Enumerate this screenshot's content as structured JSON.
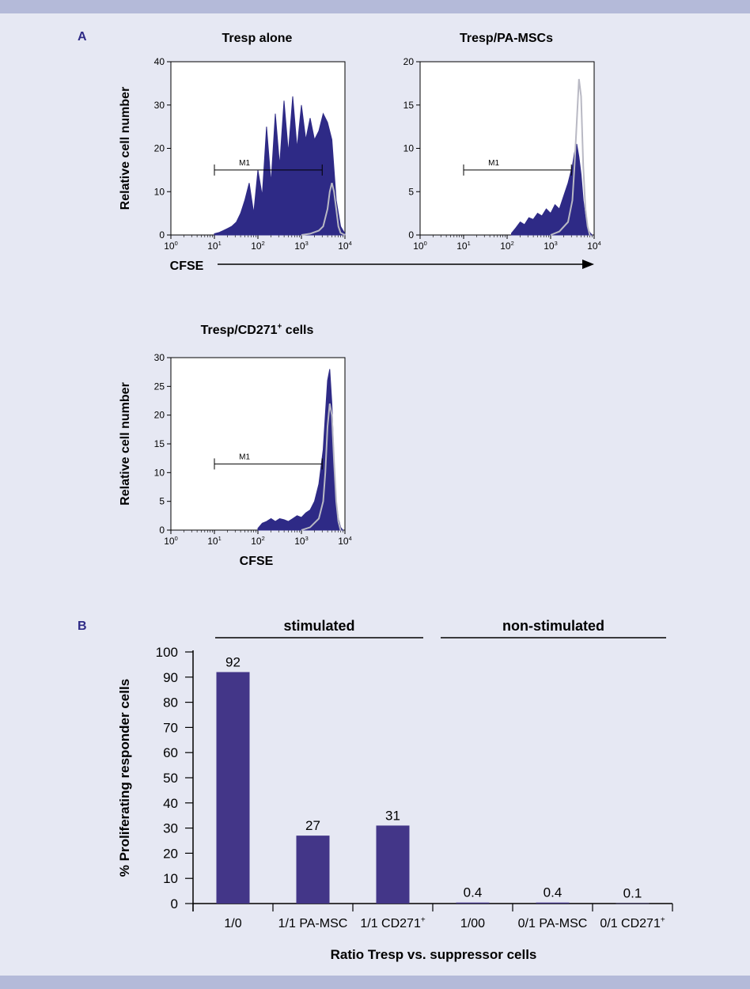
{
  "colors": {
    "page_background": "#e6e8f3",
    "band": "#b4bad9",
    "bar_fill": "#433688",
    "histogram_fill": "#2e2a86",
    "control_outline": "#b9b9c4",
    "panel_letter": "#2e2a86",
    "plot_background": "#ffffff"
  },
  "panel_a": {
    "letter": "A"
  },
  "panel_b": {
    "letter": "B"
  },
  "chart_data": [
    {
      "type": "area",
      "title": "Tresp alone",
      "xlabel": "CFSE",
      "ylabel": "Relative cell number",
      "x_scale": "log",
      "xlim": [
        1,
        10000
      ],
      "ylim": [
        0,
        40
      ],
      "x_ticks": [
        "10",
        "10",
        "10",
        "10",
        "10"
      ],
      "x_tick_exponents": [
        "0",
        "1",
        "2",
        "3",
        "4"
      ],
      "y_ticks": [
        "0",
        "10",
        "20",
        "30",
        "40"
      ],
      "gate": {
        "label": "M1",
        "x_start": 10,
        "x_end": 3000,
        "y": 15
      },
      "series": [
        {
          "role": "filled",
          "x": [
            10,
            13,
            16,
            20,
            25,
            32,
            40,
            50,
            63,
            80,
            100,
            126,
            158,
            200,
            251,
            316,
            398,
            501,
            631,
            794,
            1000,
            1259,
            1585,
            1995,
            2512,
            3162,
            3981,
            5012,
            6310,
            7943,
            10000
          ],
          "y": [
            0.3,
            0.6,
            1,
            1.5,
            2,
            3,
            5,
            8,
            12,
            5,
            15,
            9,
            25,
            12,
            28,
            16,
            31,
            19,
            32,
            20,
            30,
            22,
            27,
            22,
            24,
            28,
            26,
            22,
            8,
            2,
            0.3
          ]
        },
        {
          "role": "outline",
          "x": [
            1000,
            1585,
            2512,
            3162,
            3981,
            4467,
            5012,
            5623,
            6310,
            7079,
            7943,
            10000
          ],
          "y": [
            0,
            0.3,
            1,
            2,
            6,
            10,
            12,
            10,
            6,
            2,
            0.5,
            0
          ]
        }
      ]
    },
    {
      "type": "area",
      "title": "Tresp/PA-MSCs",
      "xlabel": "CFSE",
      "ylabel": "",
      "x_scale": "log",
      "xlim": [
        1,
        10000
      ],
      "ylim": [
        0,
        20
      ],
      "x_ticks": [
        "10",
        "10",
        "10",
        "10",
        "10"
      ],
      "x_tick_exponents": [
        "0",
        "1",
        "2",
        "3",
        "4"
      ],
      "y_ticks": [
        "0",
        "5",
        "10",
        "15",
        "20"
      ],
      "gate": {
        "label": "M1",
        "x_start": 10,
        "x_end": 3000,
        "y": 7.5
      },
      "series": [
        {
          "role": "filled",
          "x": [
            126,
            158,
            200,
            251,
            316,
            398,
            501,
            631,
            794,
            1000,
            1259,
            1585,
            1995,
            2512,
            3162,
            3548,
            3981,
            4467,
            5012,
            5623,
            6310,
            7079,
            7943,
            8913
          ],
          "y": [
            0.2,
            0.8,
            1.5,
            1.2,
            2,
            1.8,
            2.5,
            2.2,
            3,
            2.5,
            3.5,
            3,
            4.5,
            6,
            8,
            9.5,
            10.5,
            9,
            7,
            4,
            2,
            0.8,
            0.3,
            0
          ]
        },
        {
          "role": "outline",
          "x": [
            1000,
            1585,
            2512,
            3162,
            3548,
            3981,
            4467,
            5012,
            5623,
            6310,
            7079,
            7943
          ],
          "y": [
            0,
            0.4,
            1.5,
            4,
            8,
            13,
            18,
            16,
            8,
            3,
            1,
            0
          ]
        }
      ]
    },
    {
      "type": "area",
      "title": "Tresp/CD271",
      "title_superscript": "+",
      "title_suffix": " cells",
      "xlabel": "CFSE",
      "ylabel": "Relative cell number",
      "x_scale": "log",
      "xlim": [
        1,
        10000
      ],
      "ylim": [
        0,
        30
      ],
      "x_ticks": [
        "10",
        "10",
        "10",
        "10",
        "10"
      ],
      "x_tick_exponents": [
        "0",
        "1",
        "2",
        "3",
        "4"
      ],
      "y_ticks": [
        "0",
        "5",
        "10",
        "15",
        "20",
        "25",
        "30"
      ],
      "gate": {
        "label": "M1",
        "x_start": 10,
        "x_end": 3000,
        "y": 11.5
      },
      "series": [
        {
          "role": "filled",
          "x": [
            100,
            126,
            158,
            200,
            251,
            316,
            398,
            501,
            631,
            794,
            1000,
            1259,
            1585,
            1995,
            2512,
            3162,
            3548,
            3981,
            4467,
            5012,
            5623,
            6310,
            7079,
            7943,
            8913
          ],
          "y": [
            0.3,
            1.2,
            1.5,
            2,
            1.5,
            2,
            1.8,
            1.5,
            2,
            2.5,
            2.2,
            3,
            3.5,
            5,
            8,
            14,
            20,
            26,
            28,
            22,
            12,
            5,
            2,
            0.5,
            0
          ]
        },
        {
          "role": "outline",
          "x": [
            1000,
            1585,
            2512,
            3162,
            3548,
            3981,
            4467,
            5012,
            5623,
            6310,
            7079,
            7943
          ],
          "y": [
            0,
            0.5,
            2,
            5,
            10,
            18,
            22,
            20,
            12,
            5,
            1.5,
            0
          ]
        }
      ]
    },
    {
      "type": "bar",
      "title": "",
      "xlabel": "Ratio Tresp vs. suppressor cells",
      "ylabel": "% Proliferating responder cells",
      "ylim": [
        0,
        100
      ],
      "y_ticks": [
        "0",
        "10",
        "20",
        "30",
        "40",
        "50",
        "60",
        "70",
        "80",
        "90",
        "100"
      ],
      "categories": [
        "1/0",
        "1/1 PA-MSC",
        "1/1 CD271",
        "1/00",
        "0/1 PA-MSC",
        "0/1 CD271"
      ],
      "category_superscripts": [
        "",
        "",
        "+",
        "",
        "",
        "+"
      ],
      "values": [
        92,
        27,
        31,
        0.4,
        0.4,
        0.1
      ],
      "value_labels": [
        "92",
        "27",
        "31",
        "0.4",
        "0.4",
        "0.1"
      ],
      "groups": [
        {
          "label": "stimulated",
          "categories": [
            0,
            1,
            2
          ]
        },
        {
          "label": "non-stimulated",
          "categories": [
            3,
            4,
            5
          ]
        }
      ]
    }
  ]
}
